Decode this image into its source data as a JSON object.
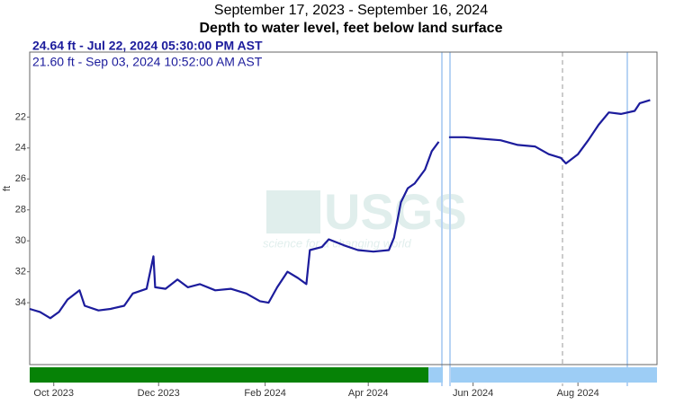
{
  "chart_data": {
    "type": "line",
    "title": "September 17, 2023 - September 16, 2024",
    "subtitle": "Depth to water level, feet below land surface",
    "y_label": "ft",
    "tooltips": [
      "24.64 ft - Jul 22, 2024 05:30:00 PM AST",
      "21.60 ft - Sep 03, 2024 10:52:00 AM AST"
    ],
    "watermark": [
      "USGS",
      "science for a changing world"
    ],
    "x": [
      "2023-09-17",
      "2023-09-23",
      "2023-09-29",
      "2023-10-04",
      "2023-10-09",
      "2023-10-16",
      "2023-10-19",
      "2023-10-27",
      "2023-11-03",
      "2023-11-11",
      "2023-11-16",
      "2023-11-24",
      "2023-11-28",
      "2023-11-29",
      "2023-12-05",
      "2023-12-12",
      "2023-12-18",
      "2023-12-25",
      "2024-01-03",
      "2024-01-12",
      "2024-01-21",
      "2024-01-29",
      "2024-02-03",
      "2024-02-08",
      "2024-02-14",
      "2024-02-20",
      "2024-02-25",
      "2024-02-27",
      "2024-03-05",
      "2024-03-09",
      "2024-03-18",
      "2024-03-26",
      "2024-04-04",
      "2024-04-13",
      "2024-04-16",
      "2024-04-20",
      "2024-04-24",
      "2024-04-28",
      "2024-05-04",
      "2024-05-08",
      "2024-05-12",
      "2024-05-15",
      "2024-05-18",
      "2024-05-27",
      "2024-06-06",
      "2024-06-17",
      "2024-06-27",
      "2024-07-07",
      "2024-07-15",
      "2024-07-22",
      "2024-07-25",
      "2024-08-01",
      "2024-08-07",
      "2024-08-13",
      "2024-08-19",
      "2024-08-26",
      "2024-09-03",
      "2024-09-06",
      "2024-09-12"
    ],
    "series": [
      {
        "name": "Depth to water level",
        "color": "#1c1c9c",
        "values": [
          34.4,
          34.6,
          35.0,
          34.6,
          33.8,
          33.2,
          34.2,
          34.5,
          34.4,
          34.2,
          33.4,
          33.1,
          31.0,
          33.0,
          33.1,
          32.5,
          33.0,
          32.8,
          33.2,
          33.1,
          33.4,
          33.9,
          34.0,
          33.0,
          32.0,
          32.4,
          32.8,
          30.6,
          30.4,
          29.9,
          30.3,
          30.6,
          30.7,
          30.6,
          29.8,
          27.5,
          26.6,
          26.3,
          25.4,
          24.2,
          23.6,
          null,
          23.3,
          23.3,
          23.4,
          23.5,
          23.8,
          23.9,
          24.4,
          24.64,
          25.0,
          24.4,
          23.5,
          22.5,
          21.7,
          21.8,
          21.6,
          21.1,
          20.9
        ]
      }
    ],
    "xlim": [
      "2023-09-17",
      "2024-09-16"
    ],
    "xticks": [
      {
        "value": "2023-10-01",
        "label": "Oct 2023"
      },
      {
        "value": "2023-12-01",
        "label": "Dec 2023"
      },
      {
        "value": "2024-02-01",
        "label": "Feb 2024"
      },
      {
        "value": "2024-04-01",
        "label": "Apr 2024"
      },
      {
        "value": "2024-06-01",
        "label": "Jun 2024"
      },
      {
        "value": "2024-08-01",
        "label": "Aug 2024"
      }
    ],
    "ylim": [
      17.8,
      38.0
    ],
    "y_inverted": true,
    "yticks": [
      22,
      24,
      26,
      28,
      30,
      32,
      34
    ]
  }
}
